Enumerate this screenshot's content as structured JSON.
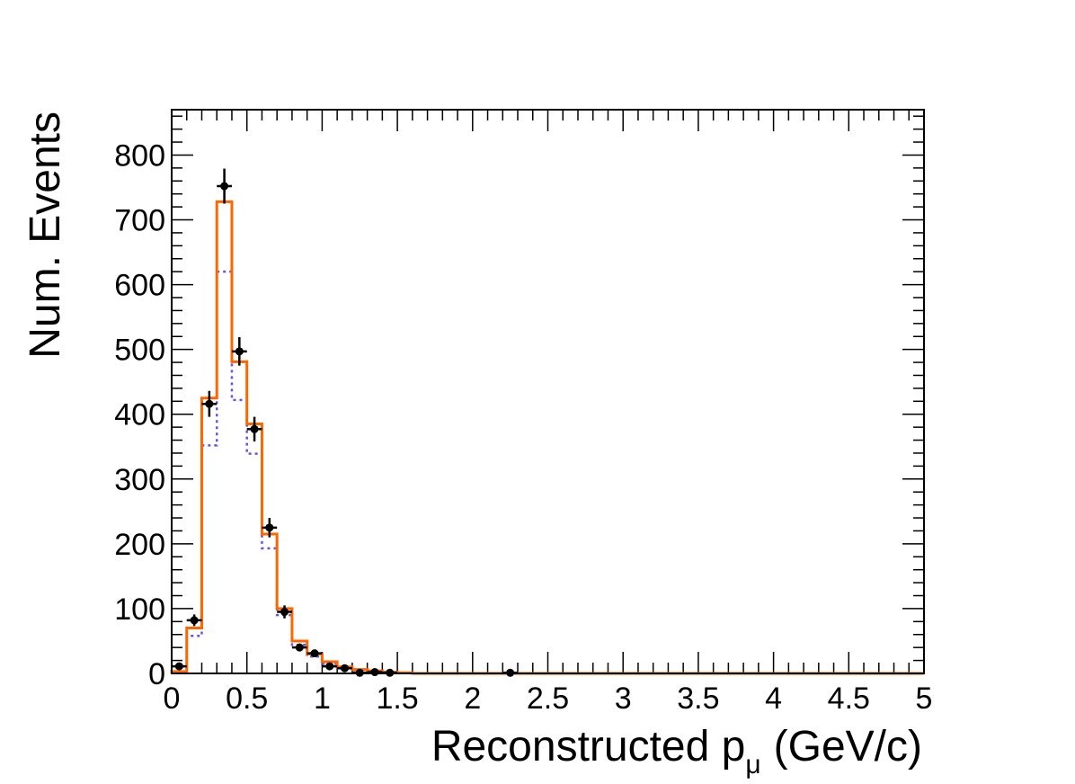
{
  "chart_data": {
    "type": "histogram",
    "xlabel": "Reconstructed p",
    "xlabel_subscript": "μ",
    "xlabel_suffix": "(GeV/c)",
    "ylabel": "Num. Events",
    "xlim": [
      0,
      5
    ],
    "ylim": [
      0,
      870
    ],
    "x_ticks": [
      {
        "value": 0,
        "label": "0"
      },
      {
        "value": 0.5,
        "label": "0.5"
      },
      {
        "value": 1,
        "label": "1"
      },
      {
        "value": 1.5,
        "label": "1.5"
      },
      {
        "value": 2,
        "label": "2"
      },
      {
        "value": 2.5,
        "label": "2.5"
      },
      {
        "value": 3,
        "label": "3"
      },
      {
        "value": 3.5,
        "label": "3.5"
      },
      {
        "value": 4,
        "label": "4"
      },
      {
        "value": 4.5,
        "label": "4.5"
      },
      {
        "value": 5,
        "label": "5"
      }
    ],
    "y_ticks": [
      {
        "value": 0,
        "label": "0"
      },
      {
        "value": 100,
        "label": "100"
      },
      {
        "value": 200,
        "label": "200"
      },
      {
        "value": 300,
        "label": "300"
      },
      {
        "value": 400,
        "label": "400"
      },
      {
        "value": 500,
        "label": "500"
      },
      {
        "value": 600,
        "label": "600"
      },
      {
        "value": 700,
        "label": "700"
      },
      {
        "value": 800,
        "label": "800"
      }
    ],
    "bin_edges": [
      0,
      0.1,
      0.2,
      0.3,
      0.4,
      0.5,
      0.6,
      0.7,
      0.8,
      0.9,
      1.0,
      1.1,
      1.2,
      1.3,
      1.4,
      1.5,
      1.6,
      1.7,
      1.8,
      1.9,
      2.0,
      2.1,
      2.2,
      2.3,
      2.4,
      2.5,
      2.6,
      2.7,
      2.8,
      2.9,
      3.0,
      3.1,
      3.2,
      3.3,
      3.4,
      3.5,
      3.6,
      3.7,
      3.8,
      3.9,
      4.0,
      4.1,
      4.2,
      4.3,
      4.4,
      4.5,
      4.6,
      4.7,
      4.8,
      4.9,
      5.0
    ],
    "series": [
      {
        "style": "solid-step",
        "color": "#ff6600",
        "values": [
          3,
          70,
          425,
          728,
          481,
          385,
          215,
          100,
          50,
          30,
          18,
          10,
          6,
          4,
          2,
          1,
          0,
          0,
          0,
          0,
          0,
          0,
          0,
          0,
          0,
          0,
          0,
          0,
          0,
          0,
          0,
          0,
          0,
          0,
          0,
          0,
          0,
          0,
          0,
          0,
          0,
          0,
          0,
          0,
          0,
          0,
          0,
          0,
          0,
          0
        ]
      },
      {
        "style": "dotted-step",
        "color": "#6655dd",
        "values": [
          2,
          58,
          352,
          620,
          422,
          339,
          193,
          90,
          44,
          26,
          15,
          8,
          5,
          3,
          2,
          1,
          0,
          0,
          0,
          0,
          0,
          0,
          0,
          0,
          0,
          0,
          0,
          0,
          0,
          0,
          0,
          0,
          0,
          0,
          0,
          0,
          0,
          0,
          0,
          0,
          0,
          0,
          0,
          0,
          0,
          0,
          0,
          0,
          0,
          0
        ]
      }
    ],
    "data_points": {
      "color": "#000000",
      "points": [
        {
          "x": 0.05,
          "y": 11,
          "err": 3
        },
        {
          "x": 0.15,
          "y": 82,
          "err": 9
        },
        {
          "x": 0.25,
          "y": 416,
          "err": 20
        },
        {
          "x": 0.35,
          "y": 752,
          "err": 27
        },
        {
          "x": 0.45,
          "y": 497,
          "err": 22
        },
        {
          "x": 0.55,
          "y": 377,
          "err": 19
        },
        {
          "x": 0.65,
          "y": 225,
          "err": 15
        },
        {
          "x": 0.75,
          "y": 95,
          "err": 10
        },
        {
          "x": 0.85,
          "y": 40,
          "err": 6
        },
        {
          "x": 0.95,
          "y": 31,
          "err": 5
        },
        {
          "x": 1.05,
          "y": 11,
          "err": 3
        },
        {
          "x": 1.15,
          "y": 8,
          "err": 3
        },
        {
          "x": 1.25,
          "y": 1,
          "err": 1
        },
        {
          "x": 1.35,
          "y": 2,
          "err": 1
        },
        {
          "x": 1.45,
          "y": 1,
          "err": 1
        },
        {
          "x": 2.25,
          "y": 1,
          "err": 1
        }
      ]
    }
  }
}
